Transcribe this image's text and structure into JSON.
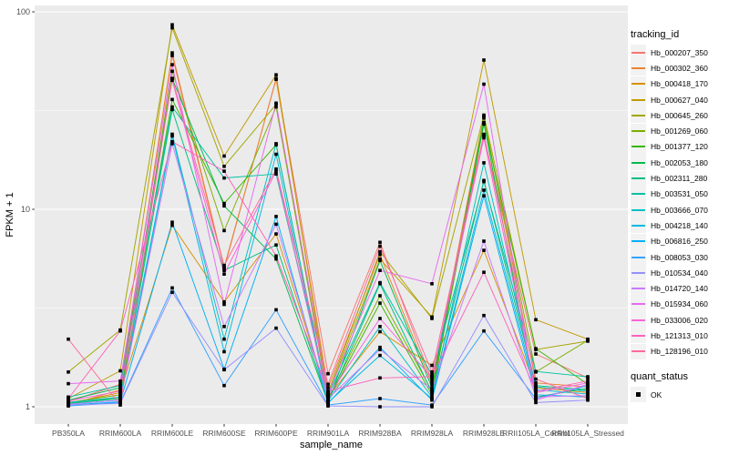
{
  "figure": {
    "background": "#FFFFFF",
    "panel_background": "#EBEBEB",
    "grid_color": "#FFFFFF",
    "tick_label_color": "#4D4D4D",
    "tick_mark_color": "#333333",
    "point_color": "#000000"
  },
  "legend": {
    "tracking_title": "tracking_id",
    "quant_title": "quant_status",
    "quant_items": [
      {
        "label": "OK",
        "key_shape": "filled-square"
      }
    ]
  },
  "chart_data": {
    "type": "line",
    "title": "",
    "xlabel": "sample_name",
    "ylabel": "FPKM + 1",
    "y_scale": "log10",
    "y_ticks": [
      {
        "value": 1,
        "label": "1"
      },
      {
        "value": 10,
        "label": "10"
      },
      {
        "value": 100,
        "label": "100"
      }
    ],
    "y_minor_ticks": [
      3.162,
      31.62
    ],
    "ylim": [
      0.85,
      110
    ],
    "grid": "on",
    "legend_position": "right",
    "point_shape": "filled-square-black",
    "categories": [
      "PB350LA",
      "RRIM600LA",
      "RRIM600LE",
      "RRIM600SE",
      "RRIM600PE",
      "RRIM901LA",
      "RRIM928BA",
      "RRIM928LA",
      "RRIM928LE",
      "RRII105LA_Control",
      "RRII105LA_Stressed"
    ],
    "series": [
      {
        "name": "Hb_000207_350",
        "color": "#F8766D",
        "values": [
          1.06,
          1.3,
          60,
          5.0,
          46,
          1.47,
          6.8,
          1.35,
          23.5,
          1.85,
          1.4
        ]
      },
      {
        "name": "Hb_000302_360",
        "color": "#EA8331",
        "values": [
          1.02,
          1.22,
          62,
          5.1,
          45.5,
          1.25,
          5.9,
          1.3,
          29.5,
          1.32,
          1.26
        ]
      },
      {
        "name": "Hb_000418_170",
        "color": "#D89000",
        "values": [
          1.04,
          1.18,
          8.3,
          3.4,
          7.5,
          1.12,
          2.4,
          1.62,
          6.2,
          1.25,
          1.18
        ]
      },
      {
        "name": "Hb_000627_040",
        "color": "#C09B00",
        "values": [
          1.1,
          1.52,
          86,
          18.6,
          48,
          1.15,
          5.6,
          2.85,
          57,
          2.76,
          2.2
        ]
      },
      {
        "name": "Hb_000645_260",
        "color": "#A3A500",
        "values": [
          1.5,
          2.45,
          83,
          16.5,
          34,
          1.18,
          6.1,
          2.8,
          30,
          1.95,
          2.15
        ]
      },
      {
        "name": "Hb_001269_060",
        "color": "#7CAE00",
        "values": [
          1.05,
          1.15,
          50,
          7.8,
          33,
          1.1,
          3.65,
          1.2,
          29,
          1.5,
          2.17
        ]
      },
      {
        "name": "Hb_001377_120",
        "color": "#39B600",
        "values": [
          1.03,
          1.12,
          36,
          10.7,
          21.2,
          1.08,
          3.35,
          1.15,
          27,
          1.97,
          1.3
        ]
      },
      {
        "name": "Hb_002053_180",
        "color": "#00BB4E",
        "values": [
          1.08,
          1.25,
          46,
          10.4,
          5.6,
          1.05,
          5.5,
          1.25,
          27.5,
          1.12,
          1.24
        ]
      },
      {
        "name": "Hb_002311_280",
        "color": "#00BF7D",
        "values": [
          1.04,
          1.1,
          32,
          4.9,
          6.6,
          1.06,
          4.2,
          1.18,
          14,
          1.28,
          1.22
        ]
      },
      {
        "name": "Hb_003531_050",
        "color": "#00C1A3",
        "values": [
          1.12,
          1.28,
          33,
          14.4,
          15.1,
          1.14,
          4.25,
          1.45,
          13.8,
          1.51,
          1.42
        ]
      },
      {
        "name": "Hb_003666_070",
        "color": "#00BFC4",
        "values": [
          1.05,
          1.12,
          24,
          2.2,
          21.5,
          1.07,
          2.55,
          1.12,
          17.2,
          1.26,
          1.2
        ]
      },
      {
        "name": "Hb_004218_140",
        "color": "#00BAE0",
        "values": [
          1.03,
          1.08,
          23.5,
          1.9,
          19,
          1.05,
          1.82,
          1.1,
          12.5,
          1.22,
          1.16
        ]
      },
      {
        "name": "Hb_006816_250",
        "color": "#00B0F6",
        "values": [
          1.02,
          1.06,
          8.6,
          1.55,
          9.2,
          1.04,
          2.0,
          1.08,
          11.7,
          1.15,
          1.12
        ]
      },
      {
        "name": "Hb_008053_030",
        "color": "#35A2FF",
        "values": [
          1.01,
          1.05,
          4.0,
          1.28,
          3.1,
          1.02,
          1.1,
          1.02,
          2.42,
          1.1,
          1.28
        ]
      },
      {
        "name": "Hb_010534_040",
        "color": "#9590FF",
        "values": [
          1.02,
          1.04,
          3.8,
          1.54,
          2.5,
          1.01,
          1.0,
          1.0,
          2.9,
          1.05,
          1.08
        ]
      },
      {
        "name": "Hb_014720_140",
        "color": "#C77CFF",
        "values": [
          1.03,
          1.08,
          21.5,
          2.55,
          8.4,
          1.1,
          1.95,
          1.22,
          6.9,
          1.12,
          1.14
        ]
      },
      {
        "name": "Hb_015934_060",
        "color": "#E76BF3",
        "values": [
          1.31,
          1.35,
          54,
          3.3,
          34.5,
          1.16,
          4.9,
          4.2,
          43,
          1.08,
          1.3
        ]
      },
      {
        "name": "Hb_033006_020",
        "color": "#FA62DB",
        "values": [
          1.07,
          1.2,
          45,
          4.7,
          15.6,
          1.13,
          2.8,
          1.4,
          23,
          1.18,
          1.32
        ]
      },
      {
        "name": "Hb_121313_010",
        "color": "#FF62BC",
        "values": [
          1.1,
          2.42,
          22,
          15.6,
          5.8,
          1.2,
          1.4,
          1.42,
          4.8,
          1.2,
          1.35
        ]
      },
      {
        "name": "Hb_128196_010",
        "color": "#FF6A98",
        "values": [
          2.2,
          1.02,
          46,
          5.2,
          16,
          1.3,
          6.5,
          1.5,
          24,
          1.38,
          1.1
        ]
      }
    ]
  }
}
